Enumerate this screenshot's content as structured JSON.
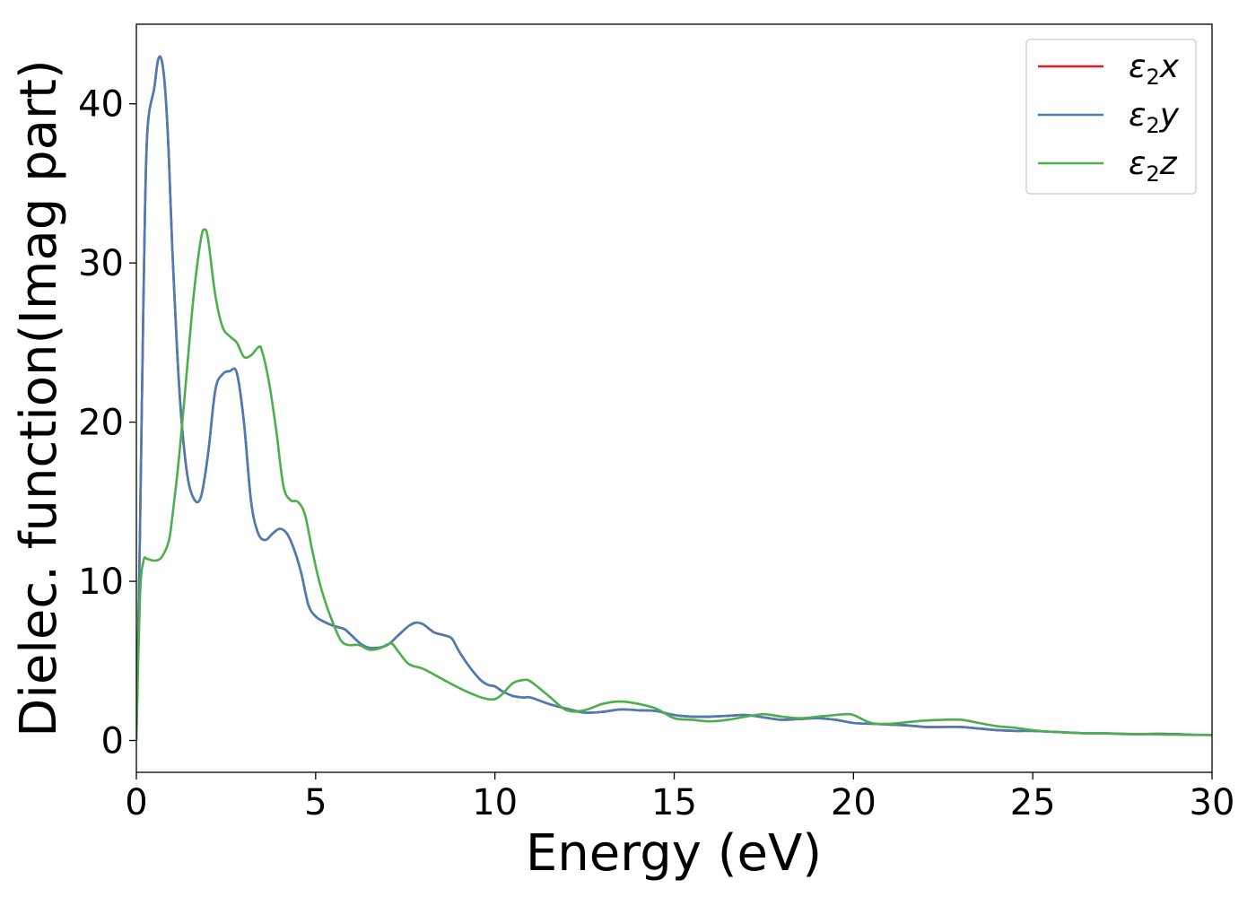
{
  "chart_data": {
    "type": "line",
    "xlabel": "Energy (eV)",
    "ylabel": "Dielec. function(Imag part)",
    "xlim": [
      0,
      30
    ],
    "ylim": [
      -2,
      45
    ],
    "xticks": [
      0,
      5,
      10,
      15,
      20,
      25,
      30
    ],
    "xtick_labels": [
      "0",
      "5",
      "10",
      "15",
      "20",
      "25",
      "30"
    ],
    "yticks": [
      0,
      10,
      20,
      30,
      40
    ],
    "ytick_labels": [
      "0",
      "10",
      "20",
      "30",
      "40"
    ],
    "grid": false,
    "legend_position": "top-right",
    "series": [
      {
        "name": "ε₂x",
        "legend": {
          "base": "ε",
          "sub": "2",
          "tail": "x"
        },
        "color": "#e41a1c",
        "x": [
          0,
          0.1,
          0.2,
          0.3,
          0.5,
          0.6,
          0.7,
          0.8,
          0.9,
          1.0,
          1.2,
          1.4,
          1.6,
          1.8,
          2.0,
          2.2,
          2.4,
          2.6,
          2.8,
          3.0,
          3.2,
          3.4,
          3.6,
          3.8,
          4.0,
          4.2,
          4.4,
          4.6,
          4.8,
          5.0,
          5.2,
          5.5,
          5.8,
          6.0,
          6.3,
          6.6,
          7.0,
          7.3,
          7.6,
          7.8,
          8.0,
          8.3,
          8.6,
          8.8,
          9.0,
          9.3,
          9.6,
          9.8,
          10.0,
          10.2,
          10.5,
          10.8,
          11.0,
          11.5,
          12.0,
          12.5,
          13.0,
          13.5,
          14.0,
          14.5,
          15.0,
          15.5,
          16.0,
          16.5,
          17.0,
          17.5,
          18.0,
          18.5,
          19.0,
          19.5,
          20.0,
          20.5,
          21.0,
          21.5,
          22.0,
          22.5,
          23.0,
          23.5,
          24.0,
          24.5,
          25.0,
          25.5,
          26.0,
          26.5,
          27.0,
          27.5,
          28.0,
          28.5,
          29.0,
          29.5,
          30.0
        ],
        "y": [
          0,
          13,
          28,
          38,
          41,
          42.7,
          42.8,
          41,
          37,
          31,
          22,
          17,
          15.2,
          15.3,
          18,
          22,
          23,
          23.2,
          23.1,
          20,
          15,
          13,
          12.6,
          13,
          13.3,
          13,
          12,
          10.5,
          8.5,
          7.8,
          7.5,
          7.2,
          7.0,
          6.6,
          6.0,
          5.8,
          6.0,
          6.6,
          7.2,
          7.4,
          7.3,
          6.8,
          6.6,
          6.4,
          5.6,
          4.6,
          3.8,
          3.5,
          3.4,
          3.1,
          2.8,
          2.7,
          2.7,
          2.3,
          2.0,
          1.75,
          1.8,
          1.95,
          1.9,
          1.85,
          1.6,
          1.5,
          1.5,
          1.55,
          1.6,
          1.45,
          1.3,
          1.35,
          1.4,
          1.3,
          1.1,
          1.05,
          1.0,
          0.95,
          0.85,
          0.85,
          0.85,
          0.75,
          0.65,
          0.6,
          0.6,
          0.55,
          0.5,
          0.45,
          0.45,
          0.42,
          0.4,
          0.42,
          0.4,
          0.36,
          0.35
        ]
      },
      {
        "name": "ε₂y",
        "legend": {
          "base": "ε",
          "sub": "2",
          "tail": "y"
        },
        "color": "#4a7db5",
        "x": [
          0,
          0.1,
          0.2,
          0.3,
          0.5,
          0.6,
          0.7,
          0.8,
          0.9,
          1.0,
          1.2,
          1.4,
          1.6,
          1.8,
          2.0,
          2.2,
          2.4,
          2.6,
          2.8,
          3.0,
          3.2,
          3.4,
          3.6,
          3.8,
          4.0,
          4.2,
          4.4,
          4.6,
          4.8,
          5.0,
          5.2,
          5.5,
          5.8,
          6.0,
          6.3,
          6.6,
          7.0,
          7.3,
          7.6,
          7.8,
          8.0,
          8.3,
          8.6,
          8.8,
          9.0,
          9.3,
          9.6,
          9.8,
          10.0,
          10.2,
          10.5,
          10.8,
          11.0,
          11.5,
          12.0,
          12.5,
          13.0,
          13.5,
          14.0,
          14.5,
          15.0,
          15.5,
          16.0,
          16.5,
          17.0,
          17.5,
          18.0,
          18.5,
          19.0,
          19.5,
          20.0,
          20.5,
          21.0,
          21.5,
          22.0,
          22.5,
          23.0,
          23.5,
          24.0,
          24.5,
          25.0,
          25.5,
          26.0,
          26.5,
          27.0,
          27.5,
          28.0,
          28.5,
          29.0,
          29.5,
          30.0
        ],
        "y": [
          0,
          13,
          28,
          38,
          41,
          42.7,
          42.8,
          41,
          37,
          31,
          22,
          17,
          15.2,
          15.3,
          18,
          22,
          23,
          23.2,
          23.1,
          20,
          15,
          13,
          12.6,
          13,
          13.3,
          13,
          12,
          10.5,
          8.5,
          7.8,
          7.5,
          7.2,
          7.0,
          6.6,
          6.0,
          5.8,
          6.0,
          6.6,
          7.2,
          7.4,
          7.3,
          6.8,
          6.6,
          6.4,
          5.6,
          4.6,
          3.8,
          3.5,
          3.4,
          3.1,
          2.8,
          2.7,
          2.7,
          2.3,
          2.0,
          1.75,
          1.8,
          1.95,
          1.9,
          1.85,
          1.6,
          1.5,
          1.5,
          1.55,
          1.6,
          1.45,
          1.3,
          1.35,
          1.4,
          1.3,
          1.1,
          1.05,
          1.0,
          0.95,
          0.85,
          0.85,
          0.85,
          0.75,
          0.65,
          0.6,
          0.6,
          0.55,
          0.5,
          0.45,
          0.45,
          0.42,
          0.4,
          0.42,
          0.4,
          0.36,
          0.35
        ]
      },
      {
        "name": "ε₂z",
        "legend": {
          "base": "ε",
          "sub": "2",
          "tail": "z"
        },
        "color": "#4daf4a",
        "x": [
          0,
          0.1,
          0.2,
          0.3,
          0.5,
          0.7,
          0.9,
          1.0,
          1.2,
          1.4,
          1.6,
          1.8,
          1.9,
          2.0,
          2.2,
          2.4,
          2.6,
          2.8,
          3.0,
          3.2,
          3.4,
          3.5,
          3.7,
          3.9,
          4.1,
          4.3,
          4.5,
          4.7,
          4.9,
          5.1,
          5.3,
          5.5,
          5.7,
          5.9,
          6.2,
          6.5,
          6.8,
          7.1,
          7.3,
          7.6,
          8.0,
          8.5,
          9.0,
          9.5,
          9.8,
          10.0,
          10.2,
          10.5,
          10.8,
          11.0,
          11.5,
          12.0,
          12.5,
          13.0,
          13.5,
          14.0,
          14.5,
          15.0,
          15.5,
          16.0,
          16.5,
          17.0,
          17.5,
          18.0,
          18.5,
          19.0,
          19.5,
          19.8,
          20.0,
          20.5,
          21.0,
          21.5,
          22.0,
          22.5,
          23.0,
          23.5,
          24.0,
          24.5,
          25.0,
          25.5,
          26.0,
          26.5,
          27.0,
          27.5,
          28.0,
          28.5,
          29.0,
          29.5,
          30.0
        ],
        "y": [
          0,
          9,
          11.3,
          11.4,
          11.3,
          11.5,
          12.5,
          14,
          18,
          23,
          28,
          31.5,
          32.1,
          31.5,
          28,
          26,
          25.4,
          25,
          24.1,
          24.2,
          24.7,
          24.5,
          22.5,
          19.5,
          16,
          15.1,
          15.0,
          14.2,
          12,
          10,
          8.5,
          7.3,
          6.3,
          6.0,
          6.0,
          5.7,
          5.8,
          6.1,
          5.6,
          4.8,
          4.5,
          3.9,
          3.3,
          2.8,
          2.6,
          2.6,
          2.9,
          3.6,
          3.8,
          3.7,
          2.8,
          1.9,
          1.9,
          2.3,
          2.45,
          2.3,
          2.0,
          1.4,
          1.3,
          1.2,
          1.3,
          1.5,
          1.65,
          1.5,
          1.4,
          1.5,
          1.6,
          1.65,
          1.6,
          1.1,
          1.05,
          1.15,
          1.25,
          1.3,
          1.3,
          1.1,
          0.9,
          0.8,
          0.65,
          0.55,
          0.5,
          0.45,
          0.45,
          0.4,
          0.4,
          0.38,
          0.36,
          0.35,
          0.35
        ]
      }
    ]
  }
}
